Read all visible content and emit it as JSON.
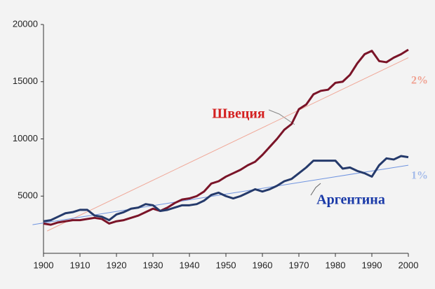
{
  "chart_data": {
    "type": "line",
    "xlim": [
      1900,
      2000
    ],
    "xticks": [
      1900,
      1910,
      1920,
      1930,
      1940,
      1950,
      1960,
      1970,
      1980,
      1990,
      2000
    ],
    "ylim": [
      0,
      20000
    ],
    "yticks": [
      5000,
      10000,
      15000,
      20000
    ],
    "series": [
      {
        "name": "Швеция",
        "color": "#7a1428",
        "label_color": "#d42020",
        "width": 3,
        "x": [
          1900,
          1902,
          1904,
          1906,
          1908,
          1910,
          1912,
          1914,
          1916,
          1918,
          1920,
          1922,
          1924,
          1926,
          1928,
          1930,
          1932,
          1934,
          1936,
          1938,
          1940,
          1942,
          1944,
          1946,
          1948,
          1950,
          1952,
          1954,
          1956,
          1958,
          1960,
          1962,
          1964,
          1966,
          1968,
          1970,
          1972,
          1974,
          1976,
          1978,
          1980,
          1982,
          1984,
          1986,
          1988,
          1990,
          1992,
          1994,
          1996,
          1998,
          2000
        ],
        "values": [
          2600,
          2500,
          2700,
          2800,
          2900,
          2900,
          3000,
          3100,
          3000,
          2600,
          2800,
          2900,
          3100,
          3300,
          3600,
          3900,
          3700,
          4000,
          4400,
          4700,
          4800,
          5000,
          5400,
          6100,
          6300,
          6700,
          7000,
          7300,
          7700,
          8000,
          8600,
          9300,
          10000,
          10800,
          11300,
          12600,
          13000,
          13900,
          14200,
          14300,
          14900,
          15000,
          15600,
          16600,
          17400,
          17700,
          16800,
          16700,
          17100,
          17400,
          17800
        ]
      },
      {
        "name": "Аргентина",
        "color": "#253a6b",
        "label_color": "#1a3aa8",
        "width": 3,
        "x": [
          1900,
          1902,
          1904,
          1906,
          1908,
          1910,
          1912,
          1914,
          1916,
          1918,
          1920,
          1922,
          1924,
          1926,
          1928,
          1930,
          1932,
          1934,
          1936,
          1938,
          1940,
          1942,
          1944,
          1946,
          1948,
          1950,
          1952,
          1954,
          1956,
          1958,
          1960,
          1962,
          1964,
          1966,
          1968,
          1970,
          1972,
          1974,
          1976,
          1978,
          1980,
          1982,
          1984,
          1986,
          1988,
          1990,
          1992,
          1994,
          1996,
          1998,
          2000
        ],
        "values": [
          2800,
          2900,
          3200,
          3500,
          3600,
          3800,
          3800,
          3300,
          3200,
          2900,
          3400,
          3600,
          3900,
          4000,
          4300,
          4200,
          3700,
          3800,
          4000,
          4200,
          4200,
          4300,
          4600,
          5100,
          5300,
          5000,
          4800,
          5000,
          5300,
          5600,
          5400,
          5600,
          5900,
          6300,
          6500,
          7000,
          7500,
          8100,
          8100,
          8100,
          8100,
          7400,
          7500,
          7200,
          7000,
          6700,
          7700,
          8300,
          8200,
          8500,
          8400
        ]
      },
      {
        "name": "2%",
        "color": "#f0a898",
        "label_color": "#f0a090",
        "width": 1,
        "x": [
          1901,
          2000
        ],
        "values": [
          1950,
          17100
        ]
      },
      {
        "name": "1%",
        "color": "#6f94e0",
        "label_color": "#a4bbea",
        "width": 1,
        "x": [
          1897,
          2000
        ],
        "values": [
          2500,
          7700
        ]
      }
    ]
  }
}
